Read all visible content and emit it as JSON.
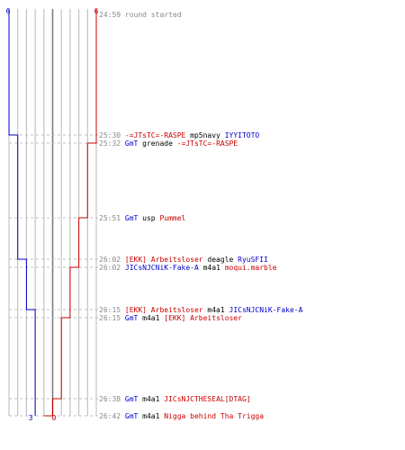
{
  "chart_data": {
    "type": "line",
    "title": "",
    "xlabel": "",
    "ylabel": "",
    "grid": true,
    "columns": 10,
    "colors": {
      "blue": "#0000cc",
      "red": "#cc0000",
      "grid": "#b8b8b8",
      "time": "#888888",
      "text": "#000000"
    },
    "top_labels": {
      "blue": "6",
      "red": "6"
    },
    "bottom_labels": {
      "blue": "3",
      "red": "0"
    },
    "series": [
      {
        "color": "blue",
        "start": 6,
        "end": 3,
        "steps": [
          {
            "event": 1,
            "value": 5
          },
          {
            "event": 4,
            "value": 4
          },
          {
            "event": 6,
            "value": 3
          }
        ]
      },
      {
        "color": "red",
        "start": 6,
        "end": 0,
        "steps": [
          {
            "event": 2,
            "value": 5
          },
          {
            "event": 3,
            "value": 4
          },
          {
            "event": 5,
            "value": 3
          },
          {
            "event": 7,
            "value": 2
          },
          {
            "event": 8,
            "value": 1
          },
          {
            "event": 9,
            "value": 0
          }
        ]
      }
    ],
    "events": [
      {
        "time": "24:59",
        "parts": [
          {
            "text": "round started",
            "color": "time"
          }
        ]
      },
      {
        "time": "25:30",
        "parts": [
          {
            "text": "-=JTsTC=-RASPE",
            "color": "red"
          },
          {
            "text": " mp5navy ",
            "color": "text"
          },
          {
            "text": "IYYITOTO",
            "color": "blue"
          }
        ]
      },
      {
        "time": "25:32",
        "parts": [
          {
            "text": "GmT",
            "color": "blue"
          },
          {
            "text": " grenade ",
            "color": "text"
          },
          {
            "text": "-=JTsTC=-RASPE",
            "color": "red"
          }
        ]
      },
      {
        "time": "25:51",
        "parts": [
          {
            "text": "GmT",
            "color": "blue"
          },
          {
            "text": " usp ",
            "color": "text"
          },
          {
            "text": "Pummel",
            "color": "red"
          }
        ]
      },
      {
        "time": "26:02",
        "parts": [
          {
            "text": "[EKK] Arbeitsloser",
            "color": "red"
          },
          {
            "text": " deagle ",
            "color": "text"
          },
          {
            "text": "RyuSFII",
            "color": "blue"
          }
        ]
      },
      {
        "time": "26:02",
        "parts": [
          {
            "text": "JICsNJCNiK-Fake-A",
            "color": "blue"
          },
          {
            "text": " m4a1 ",
            "color": "text"
          },
          {
            "text": "moqui.marble",
            "color": "red"
          }
        ]
      },
      {
        "time": "26:15",
        "parts": [
          {
            "text": "[EKK] Arbeitsloser",
            "color": "red"
          },
          {
            "text": " m4a1 ",
            "color": "text"
          },
          {
            "text": "JICsNJCNiK-Fake-A",
            "color": "blue"
          }
        ]
      },
      {
        "time": "26:15",
        "parts": [
          {
            "text": "GmT",
            "color": "blue"
          },
          {
            "text": " m4a1 ",
            "color": "text"
          },
          {
            "text": "[EKK] Arbeitsloser",
            "color": "red"
          }
        ]
      },
      {
        "time": "26:38",
        "parts": [
          {
            "text": "GmT",
            "color": "blue"
          },
          {
            "text": " m4a1 ",
            "color": "text"
          },
          {
            "text": "JICsNJCTHESEAL[DTAG]",
            "color": "red"
          }
        ]
      },
      {
        "time": "26:42",
        "parts": [
          {
            "text": "GmT",
            "color": "blue"
          },
          {
            "text": " m4a1 ",
            "color": "text"
          },
          {
            "text": "Nigga behind Tha Trigga",
            "color": "red"
          }
        ]
      }
    ]
  }
}
